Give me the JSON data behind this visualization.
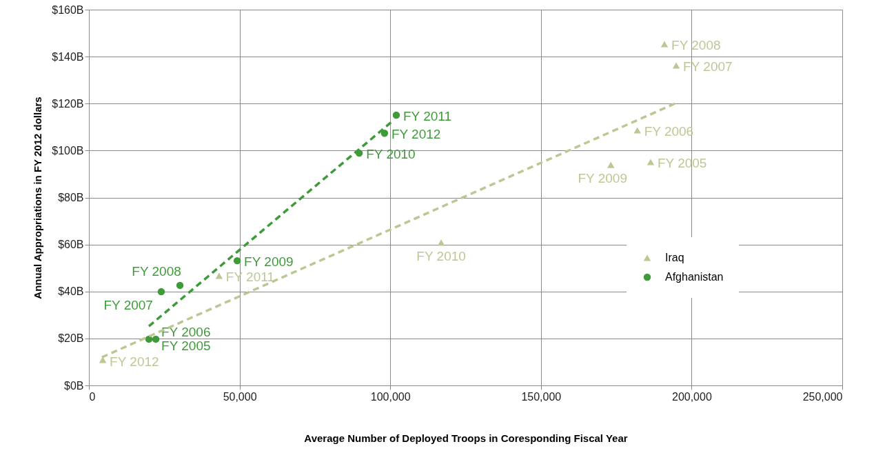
{
  "chart_data": {
    "type": "scatter",
    "xlabel": "Average Number of Deployed Troops in Coresponding Fiscal Year",
    "ylabel": "Annual Appropriations in FY 2012 dollars",
    "xlim": [
      0,
      250000
    ],
    "ylim": [
      0,
      160
    ],
    "xticks": [
      0,
      {
        "value": 50000,
        "label": "50,000"
      },
      {
        "value": 100000,
        "label": "100,000"
      },
      {
        "value": 150000,
        "label": "150,000"
      },
      {
        "value": 200000,
        "label": "200,000"
      },
      {
        "value": 250000,
        "label": "250,000"
      }
    ],
    "yticks": [
      {
        "value": 0,
        "label": "$0B"
      },
      {
        "value": 20,
        "label": "$20B"
      },
      {
        "value": 40,
        "label": "$40B"
      },
      {
        "value": 60,
        "label": "$60B"
      },
      {
        "value": 80,
        "label": "$80B"
      },
      {
        "value": 100,
        "label": "$100B"
      },
      {
        "value": 120,
        "label": "$120B"
      },
      {
        "value": 140,
        "label": "$140B"
      },
      {
        "value": 160,
        "label": "$160B"
      }
    ],
    "grid": true,
    "legend": "right",
    "series": [
      {
        "name": "Iraq",
        "color": "#bcc893",
        "marker": "triangle",
        "x": [
          186400,
          182000,
          194900,
          191000,
          173200,
          116900,
          43200,
          4600
        ],
        "values": [
          95.1,
          108.6,
          136.2,
          145.3,
          93.9,
          60.8,
          46.7,
          10.9
        ],
        "value_labels": [
          "FY 2005",
          "FY 2006",
          "FY 2007",
          "FY 2008",
          "FY 2009",
          "FY 2010",
          "FY 2011",
          "FY 2012"
        ]
      },
      {
        "name": "Afghanistan",
        "color": "#3f9a3a",
        "marker": "circle",
        "x": [
          22200,
          19900,
          24000,
          30200,
          49200,
          89700,
          102000,
          98100
        ],
        "values": [
          19.7,
          19.7,
          39.9,
          42.6,
          53.1,
          98.9,
          115.1,
          107.4
        ],
        "value_labels": [
          "FY 2005",
          "FY 2006",
          "FY 2007",
          "FY 2008",
          "FY 2009",
          "FY 2010",
          "FY 2011",
          "FY 2012"
        ]
      },
      {
        "type": "line",
        "color": "#bcc893",
        "line_style": "dashed",
        "marker": "none",
        "x": [
          4300,
          194600
        ],
        "values": [
          12.0,
          120.1
        ]
      },
      {
        "type": "line",
        "color": "#3f9a3a",
        "line_style": "dashed",
        "marker": "none",
        "x": [
          19900,
          100900
        ],
        "values": [
          25.2,
          112.7
        ]
      }
    ]
  }
}
